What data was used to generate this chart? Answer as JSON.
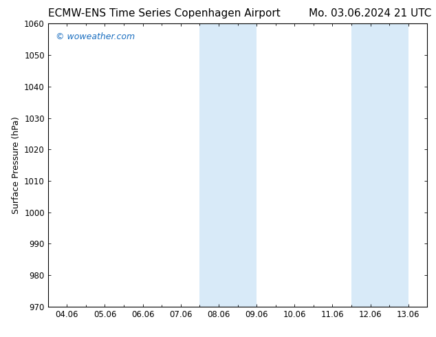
{
  "title_left": "ECMW-ENS Time Series Copenhagen Airport",
  "title_right": "Mo. 03.06.2024 21 UTC",
  "ylabel": "Surface Pressure (hPa)",
  "ylim": [
    970,
    1060
  ],
  "yticks": [
    970,
    980,
    990,
    1000,
    1010,
    1020,
    1030,
    1040,
    1050,
    1060
  ],
  "xtick_labels": [
    "04.06",
    "05.06",
    "06.06",
    "07.06",
    "08.06",
    "09.06",
    "10.06",
    "11.06",
    "12.06",
    "13.06"
  ],
  "n_xticks": 10,
  "background_color": "#ffffff",
  "plot_bg_color": "#ffffff",
  "shaded_color": "#d8eaf8",
  "shaded_bands": [
    {
      "xmin": 4.0,
      "xmax": 4.5
    },
    {
      "xmin": 4.5,
      "xmax": 5.5
    },
    {
      "xmin": 8.0,
      "xmax": 8.5
    },
    {
      "xmin": 8.5,
      "xmax": 9.5
    }
  ],
  "watermark_text": "© woweather.com",
  "watermark_color": "#1a6ec0",
  "title_fontsize": 11,
  "ylabel_fontsize": 9,
  "tick_fontsize": 8.5,
  "watermark_fontsize": 9
}
